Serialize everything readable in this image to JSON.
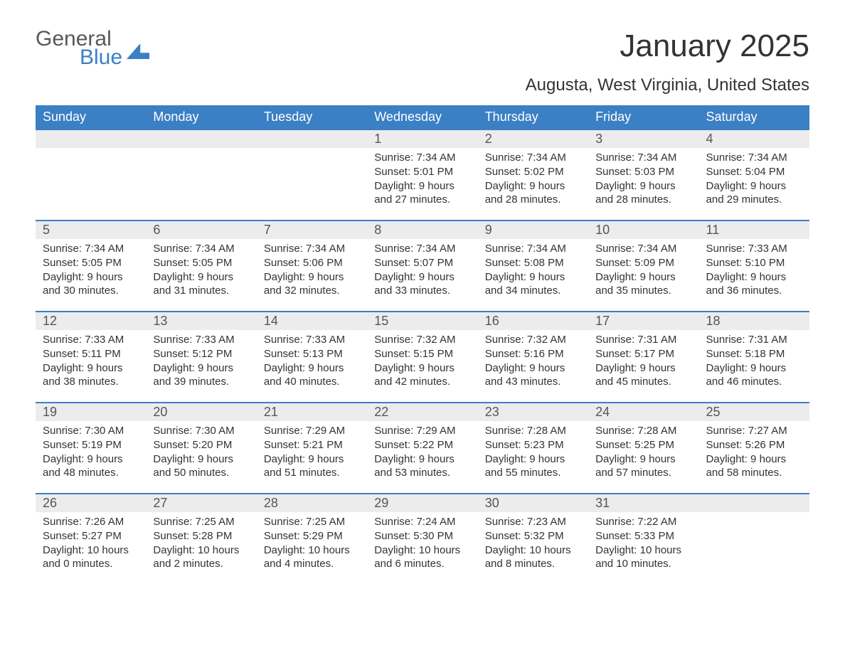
{
  "logo": {
    "text1": "General",
    "text2": "Blue"
  },
  "header": {
    "month_title": "January 2025",
    "location": "Augusta, West Virginia, United States"
  },
  "colors": {
    "header_bg": "#3b7fc4",
    "header_text": "#ffffff",
    "daynum_bg": "#ececec",
    "daynum_border": "#3b7fc4",
    "body_text": "#333333",
    "page_bg": "#ffffff"
  },
  "typography": {
    "month_title_fontsize": 44,
    "location_fontsize": 24,
    "weekday_fontsize": 18,
    "daynum_fontsize": 18,
    "body_fontsize": 15
  },
  "weekdays": [
    "Sunday",
    "Monday",
    "Tuesday",
    "Wednesday",
    "Thursday",
    "Friday",
    "Saturday"
  ],
  "weeks": [
    [
      {
        "blank": true
      },
      {
        "blank": true
      },
      {
        "blank": true
      },
      {
        "num": "1",
        "sunrise": "Sunrise: 7:34 AM",
        "sunset": "Sunset: 5:01 PM",
        "day1": "Daylight: 9 hours",
        "day2": "and 27 minutes."
      },
      {
        "num": "2",
        "sunrise": "Sunrise: 7:34 AM",
        "sunset": "Sunset: 5:02 PM",
        "day1": "Daylight: 9 hours",
        "day2": "and 28 minutes."
      },
      {
        "num": "3",
        "sunrise": "Sunrise: 7:34 AM",
        "sunset": "Sunset: 5:03 PM",
        "day1": "Daylight: 9 hours",
        "day2": "and 28 minutes."
      },
      {
        "num": "4",
        "sunrise": "Sunrise: 7:34 AM",
        "sunset": "Sunset: 5:04 PM",
        "day1": "Daylight: 9 hours",
        "day2": "and 29 minutes."
      }
    ],
    [
      {
        "num": "5",
        "sunrise": "Sunrise: 7:34 AM",
        "sunset": "Sunset: 5:05 PM",
        "day1": "Daylight: 9 hours",
        "day2": "and 30 minutes."
      },
      {
        "num": "6",
        "sunrise": "Sunrise: 7:34 AM",
        "sunset": "Sunset: 5:05 PM",
        "day1": "Daylight: 9 hours",
        "day2": "and 31 minutes."
      },
      {
        "num": "7",
        "sunrise": "Sunrise: 7:34 AM",
        "sunset": "Sunset: 5:06 PM",
        "day1": "Daylight: 9 hours",
        "day2": "and 32 minutes."
      },
      {
        "num": "8",
        "sunrise": "Sunrise: 7:34 AM",
        "sunset": "Sunset: 5:07 PM",
        "day1": "Daylight: 9 hours",
        "day2": "and 33 minutes."
      },
      {
        "num": "9",
        "sunrise": "Sunrise: 7:34 AM",
        "sunset": "Sunset: 5:08 PM",
        "day1": "Daylight: 9 hours",
        "day2": "and 34 minutes."
      },
      {
        "num": "10",
        "sunrise": "Sunrise: 7:34 AM",
        "sunset": "Sunset: 5:09 PM",
        "day1": "Daylight: 9 hours",
        "day2": "and 35 minutes."
      },
      {
        "num": "11",
        "sunrise": "Sunrise: 7:33 AM",
        "sunset": "Sunset: 5:10 PM",
        "day1": "Daylight: 9 hours",
        "day2": "and 36 minutes."
      }
    ],
    [
      {
        "num": "12",
        "sunrise": "Sunrise: 7:33 AM",
        "sunset": "Sunset: 5:11 PM",
        "day1": "Daylight: 9 hours",
        "day2": "and 38 minutes."
      },
      {
        "num": "13",
        "sunrise": "Sunrise: 7:33 AM",
        "sunset": "Sunset: 5:12 PM",
        "day1": "Daylight: 9 hours",
        "day2": "and 39 minutes."
      },
      {
        "num": "14",
        "sunrise": "Sunrise: 7:33 AM",
        "sunset": "Sunset: 5:13 PM",
        "day1": "Daylight: 9 hours",
        "day2": "and 40 minutes."
      },
      {
        "num": "15",
        "sunrise": "Sunrise: 7:32 AM",
        "sunset": "Sunset: 5:15 PM",
        "day1": "Daylight: 9 hours",
        "day2": "and 42 minutes."
      },
      {
        "num": "16",
        "sunrise": "Sunrise: 7:32 AM",
        "sunset": "Sunset: 5:16 PM",
        "day1": "Daylight: 9 hours",
        "day2": "and 43 minutes."
      },
      {
        "num": "17",
        "sunrise": "Sunrise: 7:31 AM",
        "sunset": "Sunset: 5:17 PM",
        "day1": "Daylight: 9 hours",
        "day2": "and 45 minutes."
      },
      {
        "num": "18",
        "sunrise": "Sunrise: 7:31 AM",
        "sunset": "Sunset: 5:18 PM",
        "day1": "Daylight: 9 hours",
        "day2": "and 46 minutes."
      }
    ],
    [
      {
        "num": "19",
        "sunrise": "Sunrise: 7:30 AM",
        "sunset": "Sunset: 5:19 PM",
        "day1": "Daylight: 9 hours",
        "day2": "and 48 minutes."
      },
      {
        "num": "20",
        "sunrise": "Sunrise: 7:30 AM",
        "sunset": "Sunset: 5:20 PM",
        "day1": "Daylight: 9 hours",
        "day2": "and 50 minutes."
      },
      {
        "num": "21",
        "sunrise": "Sunrise: 7:29 AM",
        "sunset": "Sunset: 5:21 PM",
        "day1": "Daylight: 9 hours",
        "day2": "and 51 minutes."
      },
      {
        "num": "22",
        "sunrise": "Sunrise: 7:29 AM",
        "sunset": "Sunset: 5:22 PM",
        "day1": "Daylight: 9 hours",
        "day2": "and 53 minutes."
      },
      {
        "num": "23",
        "sunrise": "Sunrise: 7:28 AM",
        "sunset": "Sunset: 5:23 PM",
        "day1": "Daylight: 9 hours",
        "day2": "and 55 minutes."
      },
      {
        "num": "24",
        "sunrise": "Sunrise: 7:28 AM",
        "sunset": "Sunset: 5:25 PM",
        "day1": "Daylight: 9 hours",
        "day2": "and 57 minutes."
      },
      {
        "num": "25",
        "sunrise": "Sunrise: 7:27 AM",
        "sunset": "Sunset: 5:26 PM",
        "day1": "Daylight: 9 hours",
        "day2": "and 58 minutes."
      }
    ],
    [
      {
        "num": "26",
        "sunrise": "Sunrise: 7:26 AM",
        "sunset": "Sunset: 5:27 PM",
        "day1": "Daylight: 10 hours",
        "day2": "and 0 minutes."
      },
      {
        "num": "27",
        "sunrise": "Sunrise: 7:25 AM",
        "sunset": "Sunset: 5:28 PM",
        "day1": "Daylight: 10 hours",
        "day2": "and 2 minutes."
      },
      {
        "num": "28",
        "sunrise": "Sunrise: 7:25 AM",
        "sunset": "Sunset: 5:29 PM",
        "day1": "Daylight: 10 hours",
        "day2": "and 4 minutes."
      },
      {
        "num": "29",
        "sunrise": "Sunrise: 7:24 AM",
        "sunset": "Sunset: 5:30 PM",
        "day1": "Daylight: 10 hours",
        "day2": "and 6 minutes."
      },
      {
        "num": "30",
        "sunrise": "Sunrise: 7:23 AM",
        "sunset": "Sunset: 5:32 PM",
        "day1": "Daylight: 10 hours",
        "day2": "and 8 minutes."
      },
      {
        "num": "31",
        "sunrise": "Sunrise: 7:22 AM",
        "sunset": "Sunset: 5:33 PM",
        "day1": "Daylight: 10 hours",
        "day2": "and 10 minutes."
      },
      {
        "blank": true
      }
    ]
  ]
}
